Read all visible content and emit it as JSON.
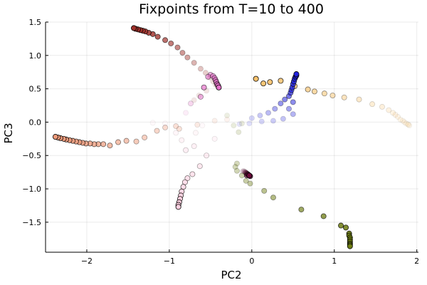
{
  "chart_data": {
    "type": "scatter",
    "title": "Fixpoints from T=10 to 400",
    "xlabel": "PC2",
    "ylabel": "PC3",
    "xlim": [
      -2.5,
      2.02
    ],
    "ylim": [
      -1.95,
      1.5
    ],
    "xticks": [
      -2,
      -1,
      0,
      1,
      2
    ],
    "xtick_labels": [
      "−2",
      "−1",
      "0",
      "1",
      "2"
    ],
    "yticks": [
      -1.5,
      -1.0,
      -0.5,
      0.0,
      0.5,
      1.0,
      1.5
    ],
    "ytick_labels": [
      "−1.5",
      "−1.0",
      "−0.5",
      "0.0",
      "0.5",
      "1.0",
      "1.5"
    ],
    "grid": true,
    "legend": "none",
    "series": [
      {
        "color": "#a0302a",
        "points": [
          [
            -1.43,
            1.41
          ],
          [
            -1.41,
            1.4
          ],
          [
            -1.38,
            1.39
          ],
          [
            -1.35,
            1.38
          ],
          [
            -1.32,
            1.37
          ],
          [
            -1.29,
            1.36
          ],
          [
            -1.25,
            1.34
          ],
          [
            -1.2,
            1.32
          ],
          [
            -1.14,
            1.28
          ],
          [
            -1.05,
            1.23
          ],
          [
            -0.98,
            1.18
          ],
          [
            -0.9,
            1.12
          ],
          [
            -0.84,
            1.04
          ],
          [
            -0.78,
            0.97
          ],
          [
            -0.7,
            0.89
          ],
          [
            -0.62,
            0.8
          ],
          [
            -0.56,
            0.74
          ],
          [
            -0.51,
            0.67
          ],
          [
            -0.47,
            0.61
          ],
          [
            -0.44,
            0.56
          ],
          [
            -0.41,
            0.53
          ],
          [
            -0.55,
            0.47
          ],
          [
            -0.7,
            0.33
          ],
          [
            -0.64,
            0.4
          ]
        ]
      },
      {
        "color": "#e36fc8",
        "points": [
          [
            -0.4,
            0.52
          ],
          [
            -0.41,
            0.55
          ],
          [
            -0.42,
            0.57
          ],
          [
            -0.43,
            0.6
          ],
          [
            -0.44,
            0.63
          ],
          [
            -0.45,
            0.66
          ],
          [
            -0.47,
            0.69
          ],
          [
            -0.5,
            0.71
          ],
          [
            -0.53,
            0.68
          ],
          [
            -0.58,
            0.52
          ],
          [
            -0.62,
            0.38
          ],
          [
            -0.74,
            0.28
          ],
          [
            -0.8,
            0.14
          ]
        ]
      },
      {
        "color": "#ee9a7a",
        "points": [
          [
            -2.38,
            -0.22
          ],
          [
            -2.35,
            -0.23
          ],
          [
            -2.32,
            -0.24
          ],
          [
            -2.28,
            -0.25
          ],
          [
            -2.25,
            -0.26
          ],
          [
            -2.21,
            -0.27
          ],
          [
            -2.17,
            -0.28
          ],
          [
            -2.13,
            -0.29
          ],
          [
            -2.09,
            -0.3
          ],
          [
            -2.05,
            -0.31
          ],
          [
            -2.01,
            -0.32
          ],
          [
            -1.96,
            -0.32
          ],
          [
            -1.91,
            -0.33
          ],
          [
            -1.86,
            -0.33
          ],
          [
            -1.8,
            -0.33
          ],
          [
            -1.72,
            -0.35
          ],
          [
            -1.62,
            -0.3
          ],
          [
            -1.52,
            -0.28
          ],
          [
            -1.4,
            -0.29
          ],
          [
            -1.3,
            -0.23
          ],
          [
            -1.15,
            -0.13
          ],
          [
            -1.05,
            -0.08
          ],
          [
            -0.92,
            -0.06
          ],
          [
            -0.88,
            -0.1
          ],
          [
            -0.66,
            -0.04
          ],
          [
            -0.45,
            0.02
          ],
          [
            -0.3,
            0.04
          ]
        ]
      },
      {
        "color": "#f7c26d",
        "points": [
          [
            0.05,
            0.65
          ],
          [
            0.14,
            0.58
          ],
          [
            0.22,
            0.6
          ],
          [
            0.35,
            0.62
          ],
          [
            0.52,
            0.54
          ],
          [
            0.68,
            0.49
          ],
          [
            0.76,
            0.46
          ],
          [
            0.88,
            0.43
          ],
          [
            0.98,
            0.4
          ],
          [
            1.12,
            0.37
          ],
          [
            1.3,
            0.34
          ],
          [
            1.46,
            0.27
          ],
          [
            1.58,
            0.23
          ],
          [
            1.66,
            0.18
          ],
          [
            1.71,
            0.14
          ],
          [
            1.74,
            0.11
          ],
          [
            1.77,
            0.08
          ],
          [
            1.8,
            0.04
          ],
          [
            1.83,
            0.02
          ],
          [
            1.85,
            0.0
          ],
          [
            1.87,
            -0.02
          ],
          [
            1.89,
            -0.03
          ],
          [
            1.9,
            -0.04
          ],
          [
            1.91,
            -0.05
          ]
        ]
      },
      {
        "color": "#2222dd",
        "points": [
          [
            0.54,
            0.72
          ],
          [
            0.54,
            0.7
          ],
          [
            0.53,
            0.68
          ],
          [
            0.52,
            0.65
          ],
          [
            0.51,
            0.61
          ],
          [
            0.5,
            0.57
          ],
          [
            0.49,
            0.52
          ],
          [
            0.48,
            0.48
          ],
          [
            0.47,
            0.44
          ],
          [
            0.45,
            0.39
          ],
          [
            0.4,
            0.34
          ],
          [
            0.35,
            0.28
          ],
          [
            0.28,
            0.2
          ],
          [
            0.2,
            0.14
          ],
          [
            0.1,
            0.1
          ],
          [
            0.0,
            0.06
          ],
          [
            0.5,
            0.12
          ],
          [
            0.38,
            0.05
          ],
          [
            0.26,
            0.02
          ],
          [
            0.12,
            0.01
          ],
          [
            -0.03,
            -0.02
          ],
          [
            -0.15,
            -0.03
          ],
          [
            0.45,
            0.2
          ],
          [
            0.5,
            0.3
          ]
        ]
      },
      {
        "color": "#6b0a3a",
        "points": [
          [
            -0.03,
            -0.8
          ],
          [
            -0.04,
            -0.79
          ],
          [
            -0.05,
            -0.78
          ],
          [
            -0.06,
            -0.77
          ],
          [
            -0.07,
            -0.76
          ],
          [
            -0.08,
            -0.75
          ],
          [
            -0.09,
            -0.74
          ],
          [
            -0.1,
            -0.73
          ],
          [
            -0.11,
            -0.74
          ],
          [
            -0.02,
            -0.81
          ],
          [
            -0.06,
            -0.8
          ]
        ]
      },
      {
        "color": "#ffd0e0",
        "points": [
          [
            -0.89,
            -1.27
          ],
          [
            -0.89,
            -1.24
          ],
          [
            -0.88,
            -1.2
          ],
          [
            -0.87,
            -1.15
          ],
          [
            -0.86,
            -1.1
          ],
          [
            -0.85,
            -1.04
          ],
          [
            -0.83,
            -0.97
          ],
          [
            -0.81,
            -0.9
          ],
          [
            -0.78,
            -0.84
          ],
          [
            -0.72,
            -0.78
          ],
          [
            -0.63,
            -0.66
          ],
          [
            -0.55,
            -0.5
          ],
          [
            -0.45,
            -0.25
          ],
          [
            -0.8,
            -0.42
          ],
          [
            -0.7,
            -0.36
          ],
          [
            -0.85,
            -0.27
          ],
          [
            -0.92,
            -0.16
          ],
          [
            -1.05,
            -0.02
          ],
          [
            -1.2,
            -0.01
          ],
          [
            -0.68,
            -0.16
          ],
          [
            -0.6,
            -0.05
          ]
        ]
      },
      {
        "color": "#6e7d12",
        "points": [
          [
            1.19,
            -1.86
          ],
          [
            1.19,
            -1.84
          ],
          [
            1.19,
            -1.82
          ],
          [
            1.19,
            -1.79
          ],
          [
            1.19,
            -1.76
          ],
          [
            1.19,
            -1.73
          ],
          [
            1.18,
            -1.7
          ],
          [
            1.18,
            -1.67
          ],
          [
            1.14,
            -1.58
          ],
          [
            1.08,
            -1.55
          ],
          [
            0.87,
            -1.41
          ],
          [
            0.6,
            -1.31
          ],
          [
            0.26,
            -1.13
          ],
          [
            0.15,
            -1.03
          ],
          [
            -0.02,
            -0.92
          ],
          [
            -0.07,
            -0.88
          ],
          [
            -0.12,
            -0.8
          ],
          [
            -0.18,
            -0.73
          ],
          [
            -0.2,
            -0.67
          ],
          [
            -0.18,
            -0.62
          ],
          [
            -0.16,
            -0.15
          ],
          [
            -0.22,
            -0.05
          ],
          [
            -0.12,
            -0.02
          ],
          [
            -0.3,
            0.1
          ]
        ]
      }
    ]
  }
}
